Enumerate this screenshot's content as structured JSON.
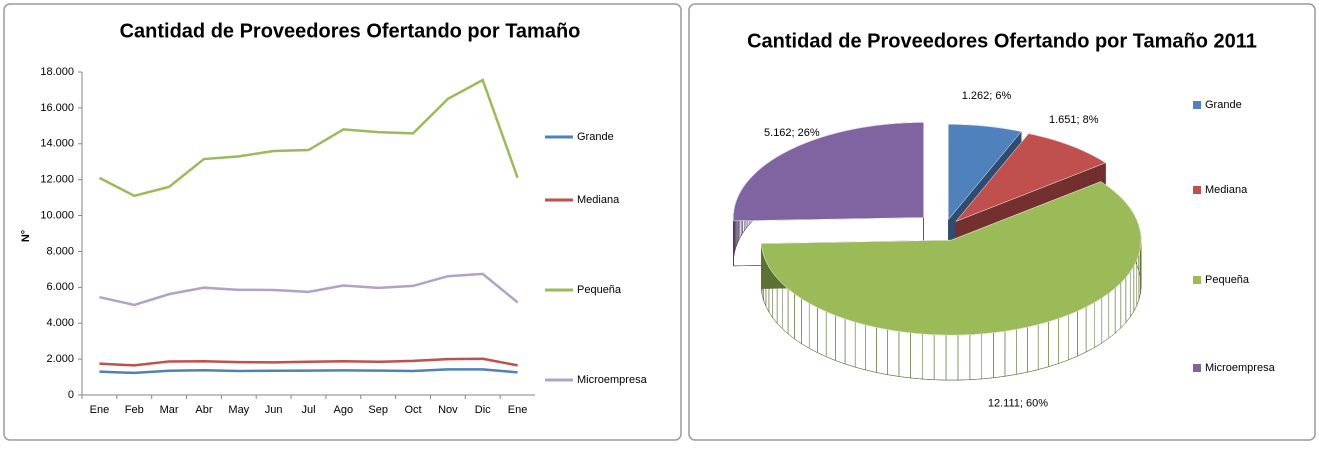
{
  "chart_data": [
    {
      "type": "line",
      "title": "Cantidad de Proveedores Ofertando por Tamaño",
      "ylabel": "N°",
      "categories": [
        "Ene",
        "Feb",
        "Mar",
        "Abr",
        "May",
        "Jun",
        "Jul",
        "Ago",
        "Sep",
        "Oct",
        "Nov",
        "Dic",
        "Ene"
      ],
      "series": [
        {
          "name": "Grande",
          "color": "#4f81bd",
          "values": [
            1300,
            1230,
            1350,
            1380,
            1340,
            1350,
            1360,
            1370,
            1360,
            1340,
            1430,
            1430,
            1262
          ]
        },
        {
          "name": "Mediana",
          "color": "#c0504d",
          "values": [
            1750,
            1650,
            1870,
            1880,
            1830,
            1820,
            1850,
            1880,
            1850,
            1900,
            2000,
            2020,
            1651
          ]
        },
        {
          "name": "Pequeña",
          "color": "#9bbb59",
          "values": [
            12100,
            11100,
            11600,
            13150,
            13300,
            13600,
            13650,
            14800,
            14650,
            14580,
            16500,
            17550,
            12111
          ]
        },
        {
          "name": "Microempresa",
          "color": "#b3a2c7",
          "values": [
            5450,
            5020,
            5620,
            5980,
            5860,
            5850,
            5750,
            6100,
            5970,
            6080,
            6620,
            6750,
            5162
          ]
        }
      ],
      "ylim": [
        0,
        18000
      ],
      "yticks": [
        0,
        {
          "value": 2000,
          "label": "2.000"
        },
        {
          "value": 4000,
          "label": "4.000"
        },
        {
          "value": 6000,
          "label": "6.000"
        },
        {
          "value": 8000,
          "label": "8.000"
        },
        {
          "value": 10000,
          "label": "10.000"
        },
        {
          "value": 12000,
          "label": "12.000"
        },
        {
          "value": 14000,
          "label": "14.000"
        },
        {
          "value": 16000,
          "label": "16.000"
        },
        {
          "value": 18000,
          "label": "18.000"
        }
      ]
    },
    {
      "type": "pie",
      "title": "Cantidad de Proveedores Ofertando por Tamaño 2011",
      "categories": [
        "Grande",
        "Mediana",
        "Pequeña",
        "Microempresa"
      ],
      "values": [
        1262,
        1651,
        12111,
        5162
      ],
      "value_labels": [
        "1.262; 6%",
        "1.651; 8%",
        "12.111; 60%",
        "5.162; 26%"
      ],
      "colors": [
        "#4f81bd",
        "#c0504d",
        "#9bbb59",
        "#8064a2"
      ]
    }
  ]
}
